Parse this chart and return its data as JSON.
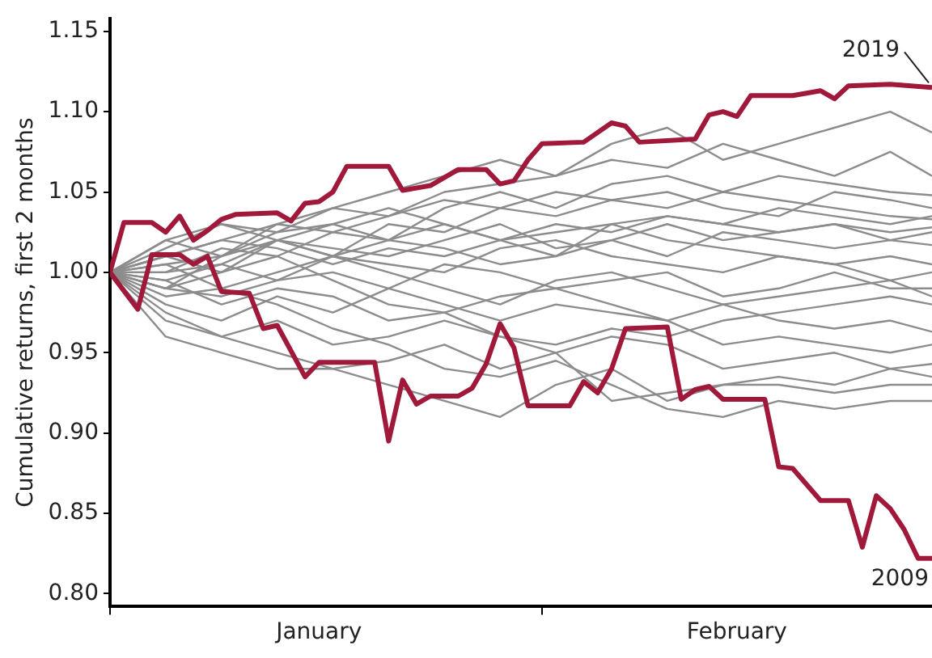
{
  "chart_data": {
    "type": "line",
    "ylabel": "Cumulative returns, first 2 months",
    "x": [
      "--01-01",
      "--01-05",
      "--01-09",
      "--01-13",
      "--01-17",
      "--01-21",
      "--01-25",
      "--01-29",
      "--02-02",
      "--02-06",
      "--02-10",
      "--02-14",
      "--02-18",
      "--02-22",
      "--02-26",
      "--03-01"
    ],
    "xlim": [
      "--01-01",
      "--03-01"
    ],
    "xticks": [
      {
        "value": "--01-01",
        "label": null
      },
      {
        "value": "--01-16",
        "label": "January"
      },
      {
        "value": "--02-01",
        "label": null
      },
      {
        "value": "--02-15",
        "label": "February"
      }
    ],
    "ylim": [
      0.792,
      1.158
    ],
    "yticks": [
      {
        "value": 0.8,
        "label": "0.80"
      },
      {
        "value": 0.85,
        "label": "0.85"
      },
      {
        "value": 0.9,
        "label": "0.90"
      },
      {
        "value": 0.95,
        "label": "0.95"
      },
      {
        "value": 1.0,
        "label": "1.00"
      },
      {
        "value": 1.05,
        "label": "1.05"
      },
      {
        "value": 1.1,
        "label": "1.10"
      },
      {
        "value": 1.15,
        "label": "1.15"
      }
    ],
    "grid": false,
    "legend": false,
    "marker": "none",
    "line_style": "solid",
    "series": [
      {
        "name": "2019",
        "color": "#a0193a",
        "x": [
          "--01-01",
          "--01-02",
          "--01-04",
          "--01-05",
          "--01-06",
          "--01-07",
          "--01-08",
          "--01-09",
          "--01-10",
          "--01-13",
          "--01-14",
          "--01-15",
          "--01-16",
          "--01-17",
          "--01-18",
          "--01-21",
          "--01-22",
          "--01-24",
          "--01-26",
          "--01-28",
          "--01-29",
          "--01-30",
          "--01-31",
          "--02-01",
          "--02-04",
          "--02-06",
          "--02-07",
          "--02-08",
          "--02-12",
          "--02-13",
          "--02-14",
          "--02-15",
          "--02-16",
          "--02-19",
          "--02-21",
          "--02-22",
          "--02-23",
          "--02-26",
          "--03-01"
        ],
        "values": [
          1.0,
          1.031,
          1.031,
          1.025,
          1.035,
          1.02,
          1.026,
          1.033,
          1.036,
          1.037,
          1.032,
          1.043,
          1.044,
          1.05,
          1.066,
          1.066,
          1.051,
          1.054,
          1.064,
          1.064,
          1.055,
          1.057,
          1.07,
          1.08,
          1.081,
          1.093,
          1.091,
          1.081,
          1.083,
          1.098,
          1.1,
          1.097,
          1.11,
          1.11,
          1.113,
          1.108,
          1.116,
          1.117,
          1.115
        ]
      },
      {
        "name": "2009",
        "color": "#a0193a",
        "x": [
          "--01-01",
          "--01-03",
          "--01-04",
          "--01-06",
          "--01-07",
          "--01-08",
          "--01-09",
          "--01-11",
          "--01-12",
          "--01-13",
          "--01-15",
          "--01-16",
          "--01-20",
          "--01-21",
          "--01-22",
          "--01-23",
          "--01-24",
          "--01-26",
          "--01-27",
          "--01-28",
          "--01-29",
          "--01-30",
          "--01-31",
          "--02-03",
          "--02-04",
          "--02-05",
          "--02-06",
          "--02-07",
          "--02-10",
          "--02-11",
          "--02-12",
          "--02-13",
          "--02-14",
          "--02-17",
          "--02-18",
          "--02-19",
          "--02-21",
          "--02-23",
          "--02-24",
          "--02-25",
          "--02-26",
          "--02-27",
          "--02-28",
          "--03-01"
        ],
        "values": [
          1.0,
          0.977,
          1.011,
          1.011,
          1.005,
          1.01,
          0.988,
          0.987,
          0.965,
          0.967,
          0.935,
          0.944,
          0.944,
          0.895,
          0.933,
          0.918,
          0.923,
          0.923,
          0.928,
          0.943,
          0.968,
          0.953,
          0.917,
          0.917,
          0.932,
          0.925,
          0.94,
          0.965,
          0.966,
          0.921,
          0.927,
          0.929,
          0.921,
          0.921,
          0.879,
          0.878,
          0.858,
          0.858,
          0.829,
          0.861,
          0.853,
          0.84,
          0.822,
          0.822
        ]
      },
      {
        "color": "#8c8c8c",
        "values": [
          1,
          1.01,
          1.02,
          1.03,
          1.04,
          1.05,
          1.06,
          1.07,
          1.06,
          1.08,
          1.09,
          1.07,
          1.08,
          1.09,
          1.1,
          1.087
        ]
      },
      {
        "color": "#8c8c8c",
        "values": [
          1,
          1.02,
          1.03,
          1.025,
          1.04,
          1.035,
          1.05,
          1.055,
          1.06,
          1.07,
          1.065,
          1.08,
          1.07,
          1.06,
          1.075,
          1.06
        ]
      },
      {
        "color": "#8c8c8c",
        "values": [
          1,
          0.99,
          1.01,
          1.02,
          1.03,
          1.02,
          1.04,
          1.05,
          1.04,
          1.055,
          1.06,
          1.05,
          1.06,
          1.055,
          1.05,
          1.048
        ]
      },
      {
        "color": "#8c8c8c",
        "values": [
          1,
          1.01,
          1.0,
          1.02,
          1.01,
          1.03,
          1.025,
          1.04,
          1.035,
          1.045,
          1.04,
          1.05,
          1.045,
          1.04,
          1.035,
          1.033
        ]
      },
      {
        "color": "#8c8c8c",
        "values": [
          1,
          1.0,
          1.015,
          1.01,
          1.025,
          1.02,
          1.03,
          1.02,
          1.03,
          1.025,
          1.035,
          1.03,
          1.025,
          1.03,
          1.025,
          1.028
        ]
      },
      {
        "color": "#8c8c8c",
        "values": [
          1,
          0.995,
          1.005,
          1.02,
          1.015,
          1.01,
          1.02,
          1.03,
          1.015,
          1.02,
          1.01,
          1.025,
          1.02,
          1.015,
          1.02,
          1.017
        ]
      },
      {
        "color": "#8c8c8c",
        "values": [
          1,
          1.005,
          0.99,
          1.0,
          1.01,
          1.005,
          1.0,
          1.015,
          1.02,
          1.01,
          1.005,
          1.0,
          1.01,
          1.005,
          0.995,
          1.0
        ]
      },
      {
        "color": "#8c8c8c",
        "values": [
          1,
          0.99,
          0.985,
          0.995,
          1.0,
          0.99,
          1.005,
          1.0,
          0.99,
          0.995,
          1.0,
          0.985,
          0.99,
          1.0,
          0.99,
          0.99
        ]
      },
      {
        "color": "#8c8c8c",
        "values": [
          1,
          0.98,
          0.97,
          0.985,
          0.975,
          0.99,
          0.98,
          0.97,
          0.98,
          0.975,
          0.97,
          0.98,
          0.97,
          0.965,
          0.97,
          0.963
        ]
      },
      {
        "color": "#8c8c8c",
        "values": [
          1,
          0.97,
          0.96,
          0.95,
          0.94,
          0.945,
          0.955,
          0.94,
          0.95,
          0.96,
          0.955,
          0.94,
          0.945,
          0.95,
          0.94,
          0.943
        ]
      },
      {
        "color": "#8c8c8c",
        "values": [
          1,
          0.96,
          0.95,
          0.94,
          0.94,
          0.93,
          0.92,
          0.91,
          0.93,
          0.94,
          0.92,
          0.93,
          0.935,
          0.93,
          0.94,
          0.935
        ]
      },
      {
        "color": "#8c8c8c",
        "values": [
          1,
          0.975,
          0.96,
          0.97,
          0.955,
          0.96,
          0.97,
          0.96,
          0.95,
          0.92,
          0.925,
          0.93,
          0.93,
          0.925,
          0.93,
          0.93
        ]
      },
      {
        "color": "#8c8c8c",
        "values": [
          1,
          1.015,
          1.03,
          1.02,
          1.01,
          1.0,
          0.99,
          0.98,
          0.995,
          1.0,
          0.99,
          0.98,
          0.985,
          0.99,
          0.995,
          0.985
        ]
      },
      {
        "color": "#8c8c8c",
        "values": [
          1,
          1.02,
          1.01,
          1.025,
          1.03,
          1.04,
          1.03,
          1.02,
          1.01,
          1.02,
          1.03,
          1.02,
          1.025,
          1.03,
          1.02,
          1.025
        ]
      },
      {
        "color": "#8c8c8c",
        "values": [
          1,
          0.99,
          1.0,
          1.01,
          0.995,
          0.98,
          0.975,
          0.985,
          0.99,
          0.98,
          0.97,
          0.955,
          0.96,
          0.955,
          0.95,
          0.955
        ]
      },
      {
        "color": "#8c8c8c",
        "values": [
          1,
          1.005,
          1.01,
          1.03,
          1.025,
          1.035,
          1.045,
          1.04,
          1.05,
          1.045,
          1.05,
          1.04,
          1.035,
          1.05,
          1.045,
          1.04
        ]
      },
      {
        "color": "#8c8c8c",
        "values": [
          1,
          0.985,
          0.99,
          0.98,
          0.965,
          0.955,
          0.94,
          0.935,
          0.945,
          0.93,
          0.915,
          0.91,
          0.92,
          0.915,
          0.92,
          0.92
        ]
      },
      {
        "color": "#8c8c8c",
        "values": [
          1,
          1.01,
          1.02,
          1.015,
          1.005,
          1.015,
          1.01,
          1.02,
          1.025,
          1.03,
          1.02,
          1.015,
          1.01,
          1.005,
          1.01,
          1.005
        ]
      },
      {
        "color": "#8c8c8c",
        "values": [
          1,
          0.995,
          0.98,
          0.99,
          0.985,
          0.97,
          0.975,
          0.96,
          0.955,
          0.965,
          0.96,
          0.97,
          0.975,
          0.98,
          0.985,
          0.98
        ]
      },
      {
        "color": "#8c8c8c",
        "values": [
          1,
          1.0,
          1.005,
          0.995,
          1.01,
          1.02,
          1.015,
          1.005,
          1.01,
          1.03,
          1.035,
          1.03,
          1.04,
          1.035,
          1.03,
          1.035
        ]
      }
    ]
  }
}
